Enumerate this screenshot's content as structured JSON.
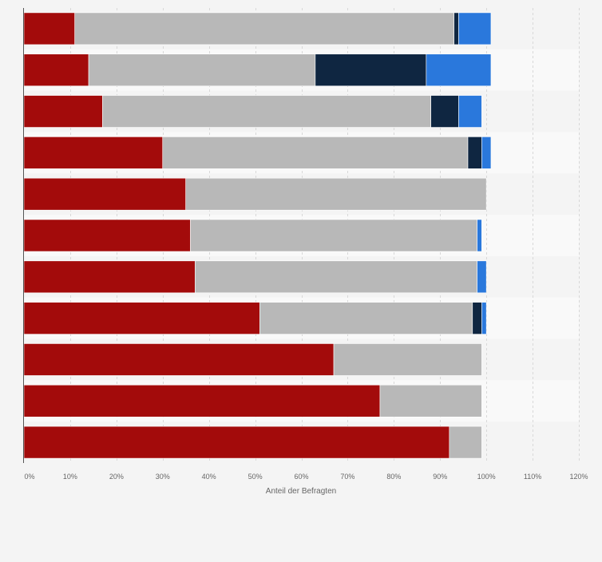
{
  "chart_data": {
    "type": "bar",
    "orientation": "horizontal",
    "stacked": true,
    "xlabel": "Anteil der Befragten",
    "xlim": [
      0,
      120
    ],
    "xticks": [
      0,
      10,
      20,
      30,
      40,
      50,
      60,
      70,
      80,
      90,
      100,
      110,
      120
    ],
    "xtick_labels": [
      "0%",
      "10%",
      "20%",
      "30%",
      "40%",
      "50%",
      "60%",
      "70%",
      "80%",
      "90%",
      "100%",
      "110%",
      "120%"
    ],
    "categories": [
      "",
      "",
      "",
      "",
      "",
      "",
      "",
      "",
      "",
      "",
      ""
    ],
    "series": [
      {
        "color": "#a30b0b",
        "values": [
          11,
          14,
          17,
          30,
          35,
          36,
          37,
          51,
          67,
          77,
          92
        ]
      },
      {
        "color": "#b8b8b8",
        "values": [
          82,
          49,
          71,
          66,
          65,
          62,
          61,
          46,
          32,
          22,
          7
        ]
      },
      {
        "color": "#0f2641",
        "values": [
          1,
          24,
          6,
          3,
          0,
          0,
          0,
          2,
          0,
          0,
          0
        ]
      },
      {
        "color": "#2a78dc",
        "values": [
          7,
          14,
          5,
          2,
          0,
          1,
          2,
          1,
          0,
          0,
          0
        ]
      }
    ],
    "grid": true,
    "legend": "none"
  }
}
